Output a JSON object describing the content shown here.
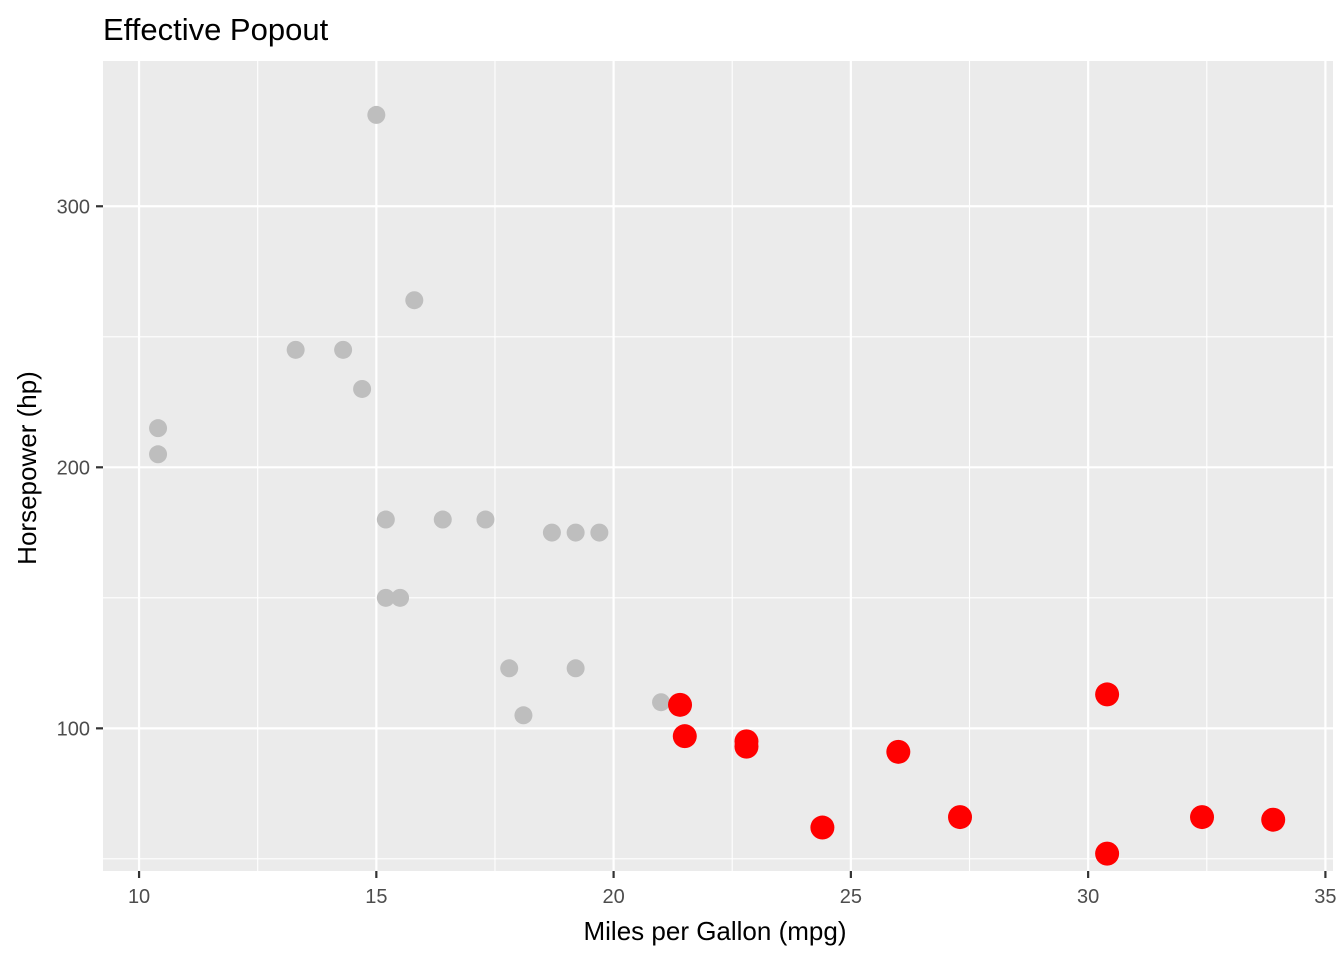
{
  "chart_data": {
    "type": "scatter",
    "title": "Effective Popout",
    "xlabel": "Miles per Gallon (mpg)",
    "ylabel": "Horsepower (hp)",
    "xlim": [
      9.24,
      35.16
    ],
    "ylim": [
      45.35,
      355.65
    ],
    "x_ticks": [
      10,
      15,
      20,
      25,
      30,
      35
    ],
    "x_tick_labels": [
      "10",
      "15",
      "20",
      "25",
      "30",
      "35"
    ],
    "x_minor_ticks": [
      12.5,
      17.5,
      22.5,
      27.5,
      32.5
    ],
    "y_ticks": [
      100,
      200,
      300
    ],
    "y_tick_labels": [
      "100",
      "200",
      "300"
    ],
    "y_minor_ticks": [
      50,
      150,
      250
    ],
    "grid": true,
    "legend": "none",
    "colors": {
      "panel": "#EBEBEB",
      "grid": "#FFFFFF",
      "context": "#BEBEBE",
      "highlight": "#FF0000"
    },
    "series": [
      {
        "role": "context",
        "color": "#BEBEBE",
        "points": [
          {
            "x": 21.0,
            "y": 110
          },
          {
            "x": 18.7,
            "y": 175
          },
          {
            "x": 18.1,
            "y": 105
          },
          {
            "x": 14.3,
            "y": 245
          },
          {
            "x": 19.2,
            "y": 123
          },
          {
            "x": 17.8,
            "y": 123
          },
          {
            "x": 16.4,
            "y": 180
          },
          {
            "x": 17.3,
            "y": 180
          },
          {
            "x": 15.2,
            "y": 180
          },
          {
            "x": 10.4,
            "y": 205
          },
          {
            "x": 10.4,
            "y": 215
          },
          {
            "x": 14.7,
            "y": 230
          },
          {
            "x": 15.5,
            "y": 150
          },
          {
            "x": 15.2,
            "y": 150
          },
          {
            "x": 13.3,
            "y": 245
          },
          {
            "x": 19.2,
            "y": 175
          },
          {
            "x": 15.8,
            "y": 264
          },
          {
            "x": 19.7,
            "y": 175
          },
          {
            "x": 15.0,
            "y": 335
          }
        ]
      },
      {
        "role": "highlight",
        "color": "#FF0000",
        "points": [
          {
            "x": 21.4,
            "y": 109
          },
          {
            "x": 21.5,
            "y": 97
          },
          {
            "x": 22.8,
            "y": 95
          },
          {
            "x": 22.8,
            "y": 93
          },
          {
            "x": 24.4,
            "y": 62
          },
          {
            "x": 26.0,
            "y": 91
          },
          {
            "x": 27.3,
            "y": 66
          },
          {
            "x": 30.4,
            "y": 113
          },
          {
            "x": 30.4,
            "y": 52
          },
          {
            "x": 32.4,
            "y": 66
          },
          {
            "x": 33.9,
            "y": 65
          }
        ]
      }
    ]
  }
}
